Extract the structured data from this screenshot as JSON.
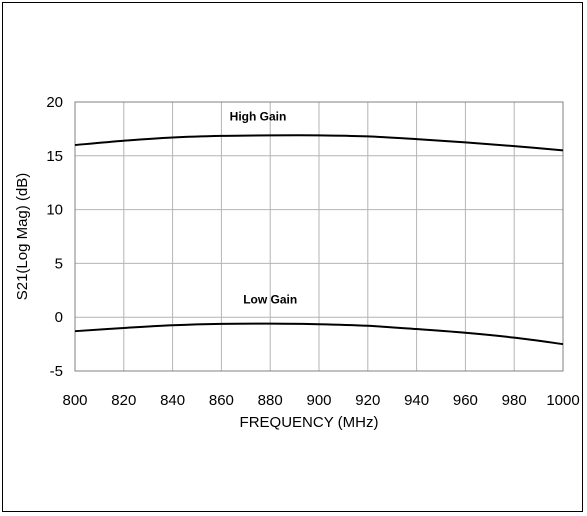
{
  "chart_data": {
    "type": "line",
    "title": "",
    "xlabel": "FREQUENCY  (MHz)",
    "ylabel": "S21(Log Mag) (dB)",
    "xlim": [
      800,
      1000
    ],
    "ylim": [
      -5,
      20
    ],
    "x_ticks": [
      800,
      820,
      840,
      860,
      880,
      900,
      920,
      940,
      960,
      980,
      1000
    ],
    "y_ticks": [
      -5,
      0,
      5,
      10,
      15,
      20
    ],
    "grid": true,
    "legend": "none",
    "x": [
      800,
      820,
      840,
      860,
      880,
      900,
      920,
      940,
      960,
      980,
      1000
    ],
    "series": [
      {
        "name": "High Gain",
        "color": "#000000",
        "values": [
          16.0,
          16.4,
          16.7,
          16.85,
          16.9,
          16.9,
          16.8,
          16.55,
          16.25,
          15.9,
          15.5
        ]
      },
      {
        "name": "Low Gain",
        "color": "#000000",
        "values": [
          -1.3,
          -1.0,
          -0.75,
          -0.62,
          -0.6,
          -0.65,
          -0.8,
          -1.1,
          -1.45,
          -1.9,
          -2.5
        ]
      }
    ]
  }
}
